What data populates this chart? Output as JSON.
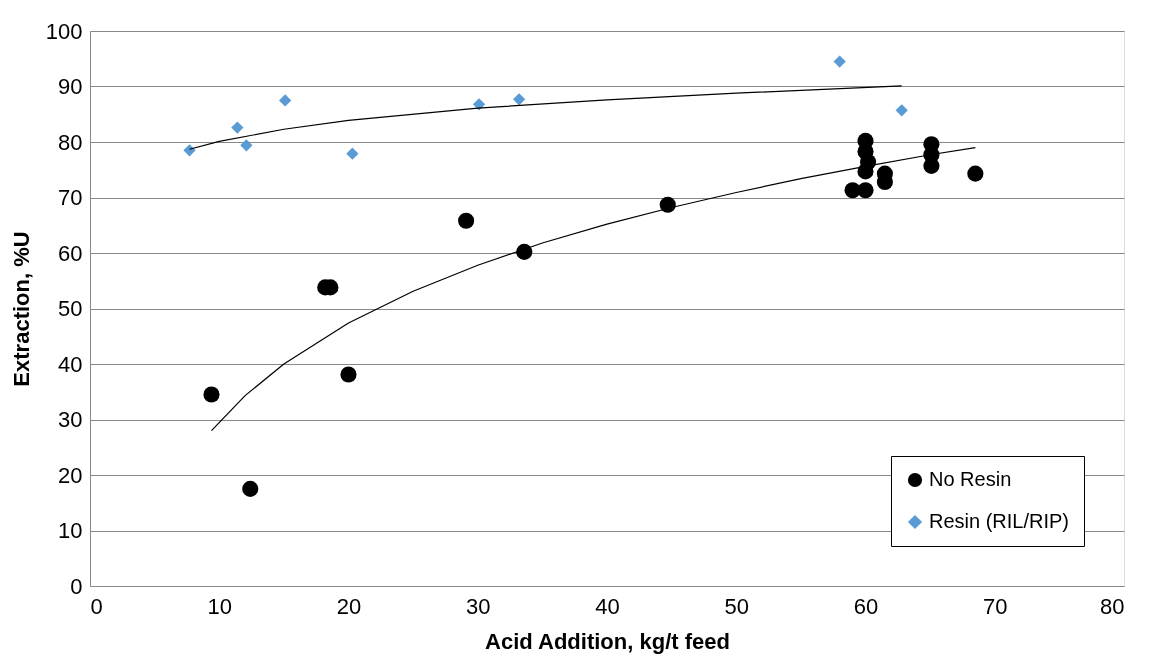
{
  "chart_data": {
    "type": "scatter",
    "xlabel": "Acid Addition, kg/t feed",
    "ylabel": "Extraction, %U",
    "xlim": [
      0,
      80
    ],
    "xticks": [
      0,
      10,
      20,
      30,
      40,
      50,
      60,
      70,
      80
    ],
    "ylim": [
      0,
      100
    ],
    "yticks": [
      0,
      10,
      20,
      30,
      40,
      50,
      60,
      70,
      80,
      90,
      100
    ],
    "grid": "y",
    "legend": "bottom right",
    "line_style": "solid",
    "series": [
      {
        "name": "No Resin",
        "color": "#000000",
        "marker": "circle",
        "x": [
          9.4,
          12.4,
          18.2,
          18.6,
          20.0,
          29.1,
          33.6,
          44.7,
          59.0,
          60.0,
          60.0,
          60.0,
          60.2,
          60.0,
          61.5,
          61.5,
          65.1,
          65.1,
          65.1,
          68.5
        ],
        "values": [
          34.5,
          17.5,
          53.8,
          53.8,
          38.1,
          65.8,
          60.2,
          68.7,
          71.3,
          71.3,
          80.2,
          78.3,
          76.4,
          74.7,
          74.3,
          72.8,
          79.6,
          77.7,
          75.7,
          74.3
        ]
      },
      {
        "name": "Resin (RIL/RIP)",
        "color": "#5b9bd5",
        "marker": "diamond",
        "x": [
          7.7,
          11.4,
          12.1,
          15.1,
          20.3,
          30.1,
          33.2,
          58.0,
          62.8
        ],
        "values": [
          78.5,
          82.6,
          79.4,
          87.5,
          77.9,
          86.8,
          87.7,
          94.5,
          85.7
        ]
      },
      {
        "type": "line",
        "color": "#000000",
        "x": [
          9.4,
          12,
          15,
          20,
          25,
          30,
          35,
          40,
          45,
          50,
          55,
          60,
          65,
          68.5
        ],
        "values": [
          28.0,
          34.3,
          40.0,
          47.4,
          53.1,
          57.8,
          61.8,
          65.2,
          68.2,
          70.9,
          73.4,
          75.6,
          77.7,
          79.0
        ]
      },
      {
        "type": "line",
        "color": "#000000",
        "x": [
          7.7,
          10,
          15,
          20,
          30,
          40,
          50,
          62.8
        ],
        "values": [
          78.7,
          80.1,
          82.3,
          83.9,
          86.1,
          87.6,
          88.8,
          90.1
        ]
      }
    ]
  }
}
